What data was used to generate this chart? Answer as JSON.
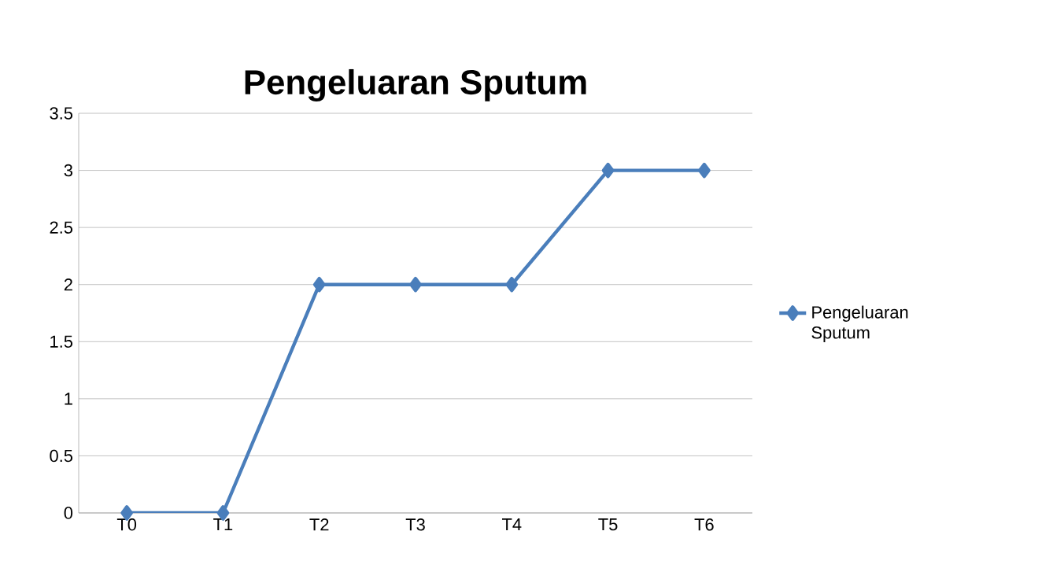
{
  "chart_data": {
    "type": "line",
    "title": "Pengeluaran Sputum",
    "categories": [
      "T0",
      "T1",
      "T2",
      "T3",
      "T4",
      "T5",
      "T6"
    ],
    "series": [
      {
        "name": "Pengeluaran Sputum",
        "color": "#4a7ebb",
        "values": [
          0,
          0,
          2,
          2,
          2,
          3,
          3
        ]
      }
    ],
    "ylim": [
      0,
      3.5
    ],
    "yticks": [
      0,
      0.5,
      1,
      1.5,
      2,
      2.5,
      3,
      3.5
    ],
    "grid": "y",
    "legend": "right",
    "marker": "diamond",
    "line_style": "solid"
  }
}
